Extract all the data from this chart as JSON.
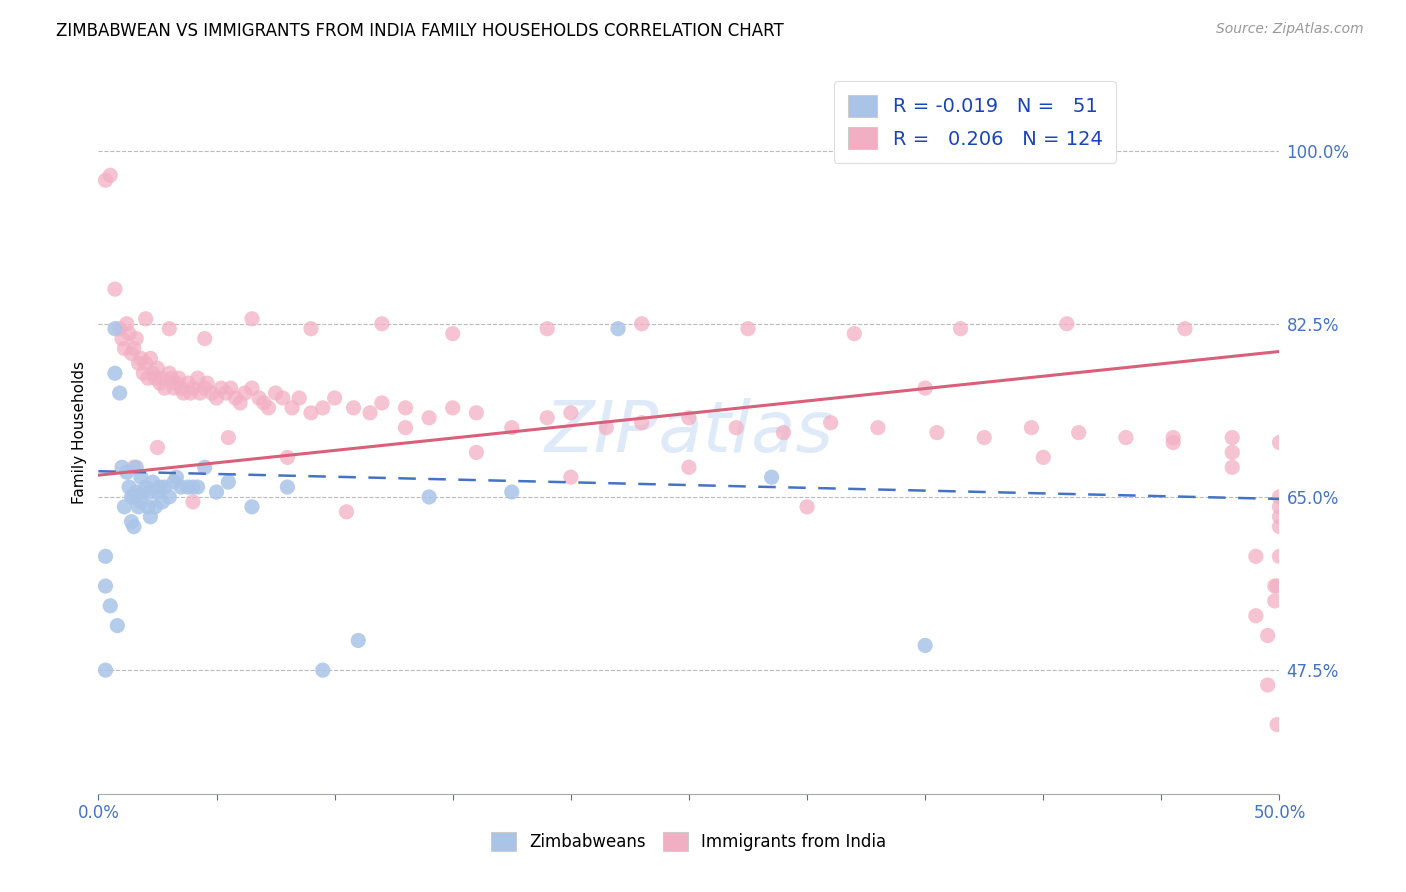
{
  "title": "ZIMBABWEAN VS IMMIGRANTS FROM INDIA FAMILY HOUSEHOLDS CORRELATION CHART",
  "source": "Source: ZipAtlas.com",
  "ylabel": "Family Households",
  "ylabel_ticks": [
    "47.5%",
    "65.0%",
    "82.5%",
    "100.0%"
  ],
  "ylabel_tick_vals": [
    0.475,
    0.65,
    0.825,
    1.0
  ],
  "xlim": [
    0.0,
    0.5
  ],
  "ylim": [
    0.35,
    1.08
  ],
  "blue_color": "#aac4e8",
  "pink_color": "#f2afc3",
  "blue_line_color": "#4472c4",
  "pink_line_color": "#d9607a",
  "blue_line_x": [
    0.0,
    0.5
  ],
  "blue_line_y": [
    0.676,
    0.648
  ],
  "pink_line_x": [
    0.0,
    0.5
  ],
  "pink_line_y": [
    0.672,
    0.797
  ],
  "blue_x": [
    0.003,
    0.007,
    0.007,
    0.009,
    0.01,
    0.011,
    0.012,
    0.013,
    0.014,
    0.014,
    0.015,
    0.015,
    0.016,
    0.016,
    0.017,
    0.018,
    0.018,
    0.019,
    0.02,
    0.021,
    0.022,
    0.022,
    0.023,
    0.024,
    0.025,
    0.026,
    0.027,
    0.028,
    0.03,
    0.032,
    0.033,
    0.035,
    0.038,
    0.04,
    0.042,
    0.045,
    0.05,
    0.055,
    0.065,
    0.08,
    0.095,
    0.11,
    0.14,
    0.175,
    0.22,
    0.285,
    0.35,
    0.003,
    0.003,
    0.005,
    0.008
  ],
  "blue_y": [
    0.475,
    0.82,
    0.775,
    0.755,
    0.68,
    0.64,
    0.675,
    0.66,
    0.65,
    0.625,
    0.65,
    0.62,
    0.68,
    0.655,
    0.64,
    0.67,
    0.645,
    0.655,
    0.66,
    0.64,
    0.655,
    0.63,
    0.665,
    0.64,
    0.655,
    0.66,
    0.645,
    0.66,
    0.65,
    0.665,
    0.67,
    0.66,
    0.66,
    0.66,
    0.66,
    0.68,
    0.655,
    0.665,
    0.64,
    0.66,
    0.475,
    0.505,
    0.65,
    0.655,
    0.82,
    0.67,
    0.5,
    0.59,
    0.56,
    0.54,
    0.52
  ],
  "pink_x": [
    0.005,
    0.007,
    0.009,
    0.01,
    0.011,
    0.012,
    0.013,
    0.014,
    0.015,
    0.016,
    0.017,
    0.018,
    0.019,
    0.02,
    0.021,
    0.022,
    0.023,
    0.024,
    0.025,
    0.026,
    0.027,
    0.028,
    0.03,
    0.031,
    0.032,
    0.033,
    0.034,
    0.035,
    0.036,
    0.038,
    0.039,
    0.04,
    0.042,
    0.043,
    0.045,
    0.046,
    0.048,
    0.05,
    0.052,
    0.054,
    0.056,
    0.058,
    0.06,
    0.062,
    0.065,
    0.068,
    0.07,
    0.072,
    0.075,
    0.078,
    0.082,
    0.085,
    0.09,
    0.095,
    0.1,
    0.108,
    0.115,
    0.12,
    0.13,
    0.14,
    0.15,
    0.16,
    0.175,
    0.19,
    0.2,
    0.215,
    0.23,
    0.25,
    0.27,
    0.29,
    0.31,
    0.33,
    0.355,
    0.375,
    0.395,
    0.415,
    0.435,
    0.455,
    0.48,
    0.5,
    0.003,
    0.015,
    0.025,
    0.04,
    0.055,
    0.08,
    0.105,
    0.13,
    0.16,
    0.2,
    0.25,
    0.3,
    0.35,
    0.4,
    0.455,
    0.48,
    0.02,
    0.03,
    0.045,
    0.065,
    0.09,
    0.12,
    0.15,
    0.19,
    0.23,
    0.275,
    0.32,
    0.365,
    0.41,
    0.46,
    0.48,
    0.49,
    0.49,
    0.495,
    0.495,
    0.498,
    0.498,
    0.499,
    0.499,
    0.5,
    0.5,
    0.5,
    0.5,
    0.5
  ],
  "pink_y": [
    0.975,
    0.86,
    0.82,
    0.81,
    0.8,
    0.825,
    0.815,
    0.795,
    0.8,
    0.81,
    0.785,
    0.79,
    0.775,
    0.785,
    0.77,
    0.79,
    0.775,
    0.77,
    0.78,
    0.765,
    0.77,
    0.76,
    0.775,
    0.77,
    0.76,
    0.765,
    0.77,
    0.76,
    0.755,
    0.765,
    0.755,
    0.76,
    0.77,
    0.755,
    0.76,
    0.765,
    0.755,
    0.75,
    0.76,
    0.755,
    0.76,
    0.75,
    0.745,
    0.755,
    0.76,
    0.75,
    0.745,
    0.74,
    0.755,
    0.75,
    0.74,
    0.75,
    0.735,
    0.74,
    0.75,
    0.74,
    0.735,
    0.745,
    0.74,
    0.73,
    0.74,
    0.735,
    0.72,
    0.73,
    0.735,
    0.72,
    0.725,
    0.73,
    0.72,
    0.715,
    0.725,
    0.72,
    0.715,
    0.71,
    0.72,
    0.715,
    0.71,
    0.705,
    0.71,
    0.705,
    0.97,
    0.68,
    0.7,
    0.645,
    0.71,
    0.69,
    0.635,
    0.72,
    0.695,
    0.67,
    0.68,
    0.64,
    0.76,
    0.69,
    0.71,
    0.695,
    0.83,
    0.82,
    0.81,
    0.83,
    0.82,
    0.825,
    0.815,
    0.82,
    0.825,
    0.82,
    0.815,
    0.82,
    0.825,
    0.82,
    0.68,
    0.59,
    0.53,
    0.46,
    0.51,
    0.545,
    0.56,
    0.42,
    0.56,
    0.59,
    0.62,
    0.63,
    0.64,
    0.65
  ]
}
